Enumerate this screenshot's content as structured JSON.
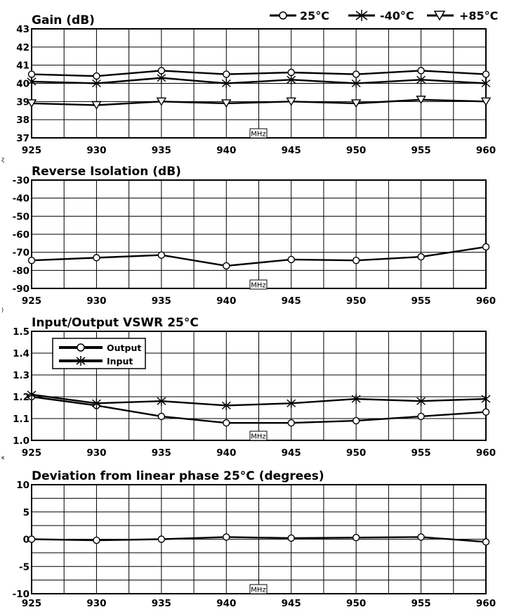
{
  "legend": {
    "t25": "25°C",
    "tm40": "-40°C",
    "tp85": "+85°C",
    "vswr_output": "Output",
    "vswr_input": "Input"
  },
  "colors": {
    "line": "#000000",
    "grid": "#000000",
    "background": "#ffffff"
  },
  "chart_data": [
    {
      "type": "line",
      "title": "Gain (dB)",
      "xlabel": "MHz",
      "ylabel": "",
      "x": [
        925,
        930,
        935,
        940,
        945,
        950,
        955,
        960
      ],
      "xlim": [
        925,
        960
      ],
      "ylim": [
        37,
        43
      ],
      "yticks": [
        37,
        38,
        39,
        40,
        41,
        42,
        43
      ],
      "grid": true,
      "series": [
        {
          "name": "25°C",
          "marker": "circle",
          "values": [
            40.5,
            40.4,
            40.7,
            40.5,
            40.6,
            40.5,
            40.7,
            40.5
          ]
        },
        {
          "name": "-40°C",
          "marker": "star",
          "values": [
            40.1,
            40.0,
            40.3,
            40.0,
            40.2,
            40.0,
            40.2,
            40.0
          ]
        },
        {
          "name": "+85°C",
          "marker": "triangle",
          "values": [
            38.9,
            38.8,
            39.0,
            38.9,
            39.0,
            38.9,
            39.1,
            39.0
          ]
        }
      ]
    },
    {
      "type": "line",
      "title": "Reverse Isolation (dB)",
      "xlabel": "MHz",
      "ylabel": "",
      "x": [
        925,
        930,
        935,
        940,
        945,
        950,
        955,
        960
      ],
      "xlim": [
        925,
        960
      ],
      "ylim": [
        -90,
        -30
      ],
      "yticks": [
        -90,
        -80,
        -70,
        -60,
        -50,
        -40,
        -30
      ],
      "grid": true,
      "series": [
        {
          "marker": "circle",
          "values": [
            -74.5,
            -73,
            -71.5,
            -77.5,
            -74,
            -74.5,
            -72.5,
            -67
          ]
        }
      ]
    },
    {
      "type": "line",
      "title": "Input/Output VSWR 25°C",
      "xlabel": "MHz",
      "ylabel": "",
      "x": [
        925,
        930,
        935,
        940,
        945,
        950,
        955,
        960
      ],
      "xlim": [
        925,
        960
      ],
      "ylim": [
        1.0,
        1.5
      ],
      "yticks": [
        1.0,
        1.1,
        1.2,
        1.3,
        1.4,
        1.5
      ],
      "ytick_labels": [
        "1.0",
        "1.1",
        "1.2",
        "1.3",
        "1.4",
        "1.5"
      ],
      "grid": true,
      "legend_position": "top-left",
      "series": [
        {
          "name": "Output",
          "marker": "circle",
          "values": [
            1.2,
            1.16,
            1.11,
            1.08,
            1.08,
            1.09,
            1.11,
            1.13
          ]
        },
        {
          "name": "Input",
          "marker": "star",
          "values": [
            1.21,
            1.17,
            1.18,
            1.16,
            1.17,
            1.19,
            1.18,
            1.19
          ]
        }
      ]
    },
    {
      "type": "line",
      "title": "Deviation from linear phase 25°C (degrees)",
      "xlabel": "MHz",
      "ylabel": "",
      "x": [
        925,
        930,
        935,
        940,
        945,
        950,
        955,
        960
      ],
      "xlim": [
        925,
        960
      ],
      "ylim": [
        -10,
        10
      ],
      "yticks": [
        -10,
        -5,
        0,
        5,
        10
      ],
      "grid": true,
      "series": [
        {
          "marker": "circle",
          "values": [
            0,
            -0.2,
            0,
            0.4,
            0.2,
            0.3,
            0.4,
            -0.5
          ]
        }
      ]
    }
  ]
}
